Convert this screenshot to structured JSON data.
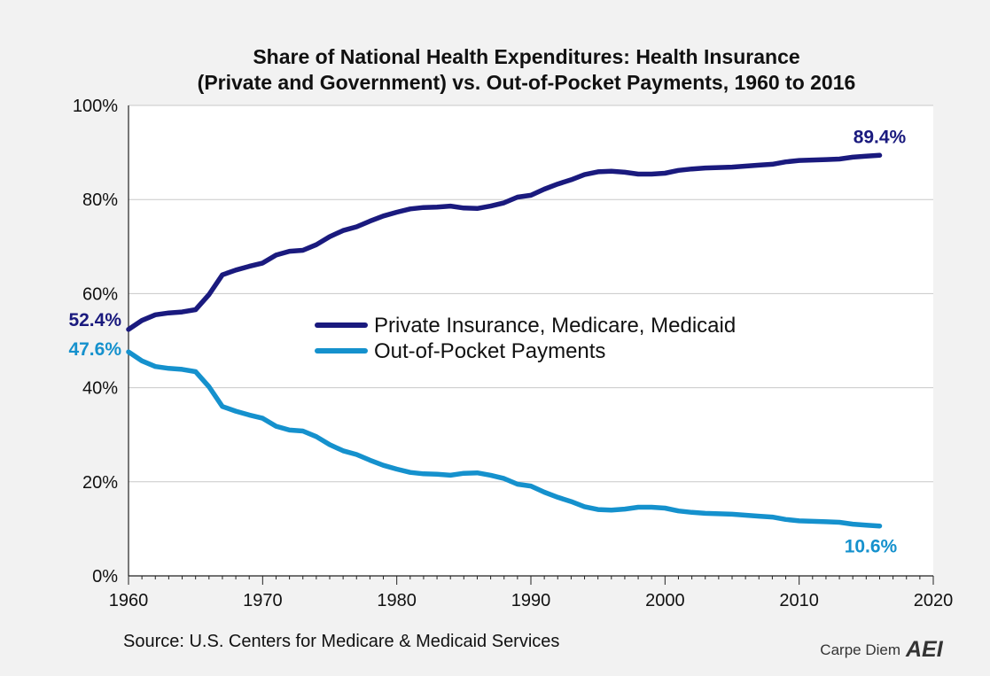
{
  "chart_data": {
    "type": "line",
    "title_line1": "Share of National Health Expenditures: Health Insurance",
    "title_line2": "(Private and Government) vs. Out-of-Pocket Payments, 1960 to 2016",
    "xlim": [
      1960,
      2020
    ],
    "ylim": [
      0,
      100
    ],
    "x_ticks": [
      "1960",
      "1970",
      "1980",
      "1990",
      "2000",
      "2010",
      "2020"
    ],
    "y_ticks": [
      "0%",
      "20%",
      "40%",
      "60%",
      "80%",
      "100%"
    ],
    "grid": true,
    "legend_position": "center",
    "series": [
      {
        "name": "Private Insurance, Medicare, Medicaid",
        "color": "#1a1a7e",
        "start_label": "52.4%",
        "end_label": "89.4%",
        "x": [
          1960,
          1961,
          1962,
          1963,
          1964,
          1965,
          1966,
          1967,
          1968,
          1969,
          1970,
          1971,
          1972,
          1973,
          1974,
          1975,
          1976,
          1977,
          1978,
          1979,
          1980,
          1981,
          1982,
          1983,
          1984,
          1985,
          1986,
          1987,
          1988,
          1989,
          1990,
          1991,
          1992,
          1993,
          1994,
          1995,
          1996,
          1997,
          1998,
          1999,
          2000,
          2001,
          2002,
          2003,
          2004,
          2005,
          2006,
          2007,
          2008,
          2009,
          2010,
          2011,
          2012,
          2013,
          2014,
          2015,
          2016
        ],
        "values": [
          52.4,
          54.3,
          55.5,
          55.9,
          56.1,
          56.6,
          59.8,
          64.0,
          65.0,
          65.8,
          66.5,
          68.2,
          69.0,
          69.2,
          70.4,
          72.1,
          73.4,
          74.2,
          75.4,
          76.5,
          77.3,
          78.0,
          78.3,
          78.4,
          78.6,
          78.2,
          78.1,
          78.6,
          79.3,
          80.5,
          80.9,
          82.2,
          83.3,
          84.2,
          85.3,
          85.9,
          86.0,
          85.8,
          85.4,
          85.4,
          85.6,
          86.2,
          86.5,
          86.7,
          86.8,
          86.9,
          87.1,
          87.3,
          87.5,
          88.0,
          88.3,
          88.4,
          88.5,
          88.6,
          89.0,
          89.2,
          89.4
        ]
      },
      {
        "name": "Out-of-Pocket Payments",
        "color": "#1591cd",
        "start_label": "47.6%",
        "end_label": "10.6%",
        "x": [
          1960,
          1961,
          1962,
          1963,
          1964,
          1965,
          1966,
          1967,
          1968,
          1969,
          1970,
          1971,
          1972,
          1973,
          1974,
          1975,
          1976,
          1977,
          1978,
          1979,
          1980,
          1981,
          1982,
          1983,
          1984,
          1985,
          1986,
          1987,
          1988,
          1989,
          1990,
          1991,
          1992,
          1993,
          1994,
          1995,
          1996,
          1997,
          1998,
          1999,
          2000,
          2001,
          2002,
          2003,
          2004,
          2005,
          2006,
          2007,
          2008,
          2009,
          2010,
          2011,
          2012,
          2013,
          2014,
          2015,
          2016
        ],
        "values": [
          47.6,
          45.7,
          44.5,
          44.1,
          43.9,
          43.4,
          40.2,
          36.0,
          35.0,
          34.2,
          33.5,
          31.8,
          31.0,
          30.8,
          29.6,
          27.9,
          26.6,
          25.8,
          24.6,
          23.5,
          22.7,
          22.0,
          21.7,
          21.6,
          21.4,
          21.8,
          21.9,
          21.4,
          20.7,
          19.5,
          19.1,
          17.8,
          16.7,
          15.8,
          14.7,
          14.1,
          14.0,
          14.2,
          14.6,
          14.6,
          14.4,
          13.8,
          13.5,
          13.3,
          13.2,
          13.1,
          12.9,
          12.7,
          12.5,
          12.0,
          11.7,
          11.6,
          11.5,
          11.4,
          11.0,
          10.8,
          10.6
        ]
      }
    ]
  },
  "source": "Source: U.S. Centers for Medicare & Medicaid Services",
  "brand": {
    "text": "Carpe Diem",
    "logo_text": "AEI"
  }
}
